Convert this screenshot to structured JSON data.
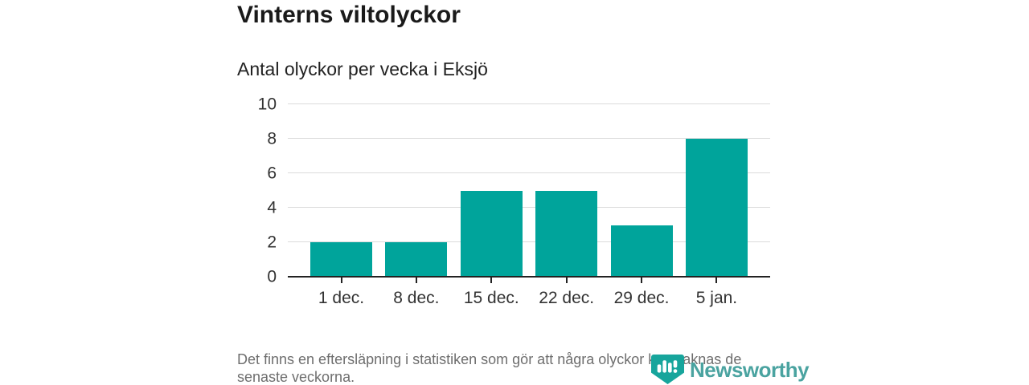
{
  "header": {
    "title": "Vinterns viltolyckor",
    "subtitle": "Antal olyckor per vecka i Eksjö"
  },
  "chart_data": {
    "type": "bar",
    "categories": [
      "1 dec.",
      "8 dec.",
      "15 dec.",
      "22 dec.",
      "29 dec.",
      "5 jan."
    ],
    "values": [
      2,
      2,
      5,
      5,
      3,
      8
    ],
    "title": "Vinterns viltolyckor",
    "subtitle": "Antal olyckor per vecka i Eksjö",
    "xlabel": "",
    "ylabel": "",
    "ylim": [
      0,
      10
    ],
    "yticks": [
      0,
      2,
      4,
      6,
      8,
      10
    ],
    "grid": true,
    "legend": false,
    "bar_color": "#00a49b"
  },
  "footer": {
    "note": "Det finns en eftersläpning i statistiken som gör att några olyckor kan saknas de senaste veckorna.",
    "brand": "Newsworthy"
  },
  "colors": {
    "bar": "#00a49b",
    "axis": "#222222",
    "grid": "#dcdcdc",
    "muted": "#6e6e6e",
    "brand": "#4aa3a0",
    "brand_icon": "#17a59c"
  }
}
